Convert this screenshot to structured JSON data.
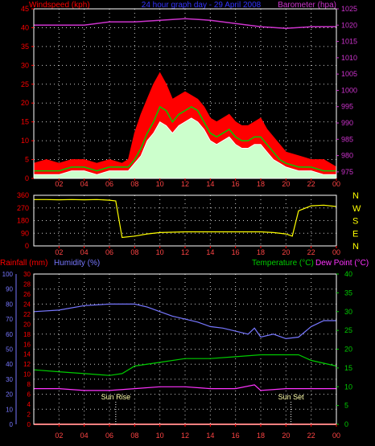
{
  "header": {
    "left_label": "Windspeed (kph)",
    "center_label": "24 hour graph day - 29 April 2008",
    "right_label": "Barometer (hpa)"
  },
  "colors": {
    "background": "#000000",
    "wind_gust": "#ff0000",
    "wind_avg": "#ffffff",
    "wind_mean": "#00cc00",
    "barometer": "#cc33cc",
    "direction": "#ffff00",
    "humidity": "#7777ff",
    "temperature": "#00cc00",
    "dewpoint": "#ff33ff",
    "rainfall": "#ff0000",
    "grid": "#ffffff",
    "axis_left": "#ff0000",
    "axis_right": "#cc33cc",
    "compass": "#ffff00"
  },
  "x_axis": {
    "labels": [
      "02",
      "04",
      "06",
      "08",
      "10",
      "12",
      "14",
      "16",
      "18",
      "20",
      "22",
      "00"
    ],
    "label_hours": [
      2,
      4,
      6,
      8,
      10,
      12,
      14,
      16,
      18,
      20,
      22,
      24
    ]
  },
  "compass": {
    "labels": [
      "N",
      "W",
      "S",
      "E",
      "N"
    ]
  },
  "lower_header": {
    "rainfall": "Rainfall (mm)",
    "humidity": "Humidity (%)",
    "temperature": "Temperature (°C)",
    "dewpoint": "Dew Point (°C)"
  },
  "markers": {
    "sunrise_label": "Sun Rise",
    "sunrise_hour": 6.5,
    "sunset_label": "Sun Set",
    "sunset_hour": 20.4
  },
  "chart_data": [
    {
      "type": "line",
      "id": "wind",
      "xlabel": "",
      "ylabel": "Windspeed (kph)",
      "y2label": "Barometer (hpa)",
      "ylim": [
        0,
        45
      ],
      "y_ticks": [
        0,
        5,
        10,
        15,
        20,
        25,
        30,
        35,
        40,
        45
      ],
      "y2lim": [
        973,
        1025
      ],
      "y2_ticks": [
        975,
        980,
        985,
        990,
        995,
        1000,
        1005,
        1010,
        1015,
        1020,
        1025
      ],
      "series": [
        {
          "name": "gust",
          "axis": "left",
          "points": [
            [
              0,
              4
            ],
            [
              1,
              5
            ],
            [
              2,
              4
            ],
            [
              3,
              5
            ],
            [
              4,
              5
            ],
            [
              5,
              4
            ],
            [
              6,
              5
            ],
            [
              7,
              4
            ],
            [
              7.5,
              5
            ],
            [
              8,
              12
            ],
            [
              8.5,
              17
            ],
            [
              9,
              21
            ],
            [
              9.5,
              25
            ],
            [
              10,
              28
            ],
            [
              10.5,
              25
            ],
            [
              11,
              21
            ],
            [
              11.5,
              22
            ],
            [
              12,
              23
            ],
            [
              12.5,
              22
            ],
            [
              13,
              21
            ],
            [
              13.5,
              19
            ],
            [
              14,
              16
            ],
            [
              14.5,
              15
            ],
            [
              15,
              16
            ],
            [
              15.5,
              17
            ],
            [
              16,
              15
            ],
            [
              16.5,
              14
            ],
            [
              17,
              14
            ],
            [
              17.5,
              15
            ],
            [
              18,
              16
            ],
            [
              18.5,
              13
            ],
            [
              19,
              11
            ],
            [
              19.5,
              9
            ],
            [
              20,
              7
            ],
            [
              21,
              6
            ],
            [
              22,
              5
            ],
            [
              23,
              5
            ],
            [
              24,
              3
            ]
          ]
        },
        {
          "name": "mean",
          "axis": "left",
          "points": [
            [
              0,
              2
            ],
            [
              1,
              2
            ],
            [
              2,
              2
            ],
            [
              3,
              3
            ],
            [
              4,
              3
            ],
            [
              5,
              2
            ],
            [
              6,
              3
            ],
            [
              7,
              3
            ],
            [
              7.5,
              3
            ],
            [
              8,
              5
            ],
            [
              8.5,
              8
            ],
            [
              9,
              12
            ],
            [
              9.5,
              15
            ],
            [
              10,
              19
            ],
            [
              10.5,
              18
            ],
            [
              11,
              15
            ],
            [
              11.5,
              17
            ],
            [
              12,
              18
            ],
            [
              12.5,
              19
            ],
            [
              13,
              18
            ],
            [
              13.5,
              15
            ],
            [
              14,
              12
            ],
            [
              14.5,
              11
            ],
            [
              15,
              12
            ],
            [
              15.5,
              13
            ],
            [
              16,
              11
            ],
            [
              16.5,
              10
            ],
            [
              17,
              10
            ],
            [
              17.5,
              11
            ],
            [
              18,
              11
            ],
            [
              18.5,
              9
            ],
            [
              19,
              7
            ],
            [
              19.5,
              5
            ],
            [
              20,
              4
            ],
            [
              21,
              3
            ],
            [
              22,
              3
            ],
            [
              23,
              2
            ],
            [
              24,
              2
            ]
          ]
        },
        {
          "name": "average",
          "axis": "left",
          "points": [
            [
              0,
              1
            ],
            [
              1,
              1
            ],
            [
              2,
              1
            ],
            [
              3,
              2
            ],
            [
              4,
              2
            ],
            [
              5,
              1
            ],
            [
              6,
              2
            ],
            [
              7,
              2
            ],
            [
              7.5,
              2
            ],
            [
              8,
              4
            ],
            [
              8.5,
              6
            ],
            [
              9,
              10
            ],
            [
              9.5,
              12
            ],
            [
              10,
              15
            ],
            [
              10.5,
              14
            ],
            [
              11,
              12
            ],
            [
              11.5,
              14
            ],
            [
              12,
              15
            ],
            [
              12.5,
              16
            ],
            [
              13,
              15
            ],
            [
              13.5,
              13
            ],
            [
              14,
              10
            ],
            [
              14.5,
              9
            ],
            [
              15,
              10
            ],
            [
              15.5,
              11
            ],
            [
              16,
              9
            ],
            [
              16.5,
              8
            ],
            [
              17,
              8
            ],
            [
              17.5,
              9
            ],
            [
              18,
              9
            ],
            [
              18.5,
              7
            ],
            [
              19,
              5
            ],
            [
              19.5,
              4
            ],
            [
              20,
              3
            ],
            [
              21,
              2
            ],
            [
              22,
              2
            ],
            [
              23,
              1
            ],
            [
              24,
              1
            ]
          ]
        },
        {
          "name": "barometer",
          "axis": "right",
          "points": [
            [
              0,
              1020
            ],
            [
              2,
              1020
            ],
            [
              4,
              1020
            ],
            [
              6,
              1021
            ],
            [
              8,
              1021
            ],
            [
              10,
              1021.5
            ],
            [
              12,
              1022
            ],
            [
              14,
              1021.5
            ],
            [
              16,
              1020.5
            ],
            [
              18,
              1019.5
            ],
            [
              20,
              1019
            ],
            [
              22,
              1019.5
            ],
            [
              24,
              1019.5
            ]
          ]
        }
      ]
    },
    {
      "type": "line",
      "id": "direction",
      "ylabel": "",
      "ylim": [
        0,
        360
      ],
      "y_ticks": [
        0,
        90,
        180,
        270,
        360
      ],
      "series": [
        {
          "name": "direction",
          "points": [
            [
              0,
              330
            ],
            [
              1,
              330
            ],
            [
              2,
              328
            ],
            [
              3,
              330
            ],
            [
              4,
              328
            ],
            [
              5,
              330
            ],
            [
              6,
              325
            ],
            [
              6.5,
              320
            ],
            [
              7,
              60
            ],
            [
              8,
              70
            ],
            [
              9,
              85
            ],
            [
              10,
              95
            ],
            [
              12,
              100
            ],
            [
              14,
              100
            ],
            [
              16,
              100
            ],
            [
              18,
              100
            ],
            [
              19,
              95
            ],
            [
              20,
              85
            ],
            [
              20.5,
              70
            ],
            [
              21,
              250
            ],
            [
              22,
              285
            ],
            [
              23,
              290
            ],
            [
              24,
              280
            ]
          ]
        }
      ]
    },
    {
      "type": "line",
      "id": "climate",
      "ylabel": "Humidity (%)",
      "ylim": [
        0,
        100
      ],
      "y_ticks": [
        0,
        10,
        20,
        30,
        40,
        50,
        60,
        70,
        80,
        90,
        100
      ],
      "rain_ylim": [
        0,
        30
      ],
      "rain_ticks": [
        0,
        2,
        4,
        6,
        8,
        10,
        12,
        14,
        16,
        18,
        20,
        22,
        24,
        26,
        28,
        30
      ],
      "temp_ylim": [
        0,
        40
      ],
      "temp_ticks": [
        0,
        5,
        10,
        15,
        20,
        25,
        30,
        35,
        40
      ],
      "series": [
        {
          "name": "humidity",
          "axis": "humidity",
          "points": [
            [
              0,
              75
            ],
            [
              2,
              76
            ],
            [
              4,
              79
            ],
            [
              6,
              80
            ],
            [
              8,
              80
            ],
            [
              9,
              78
            ],
            [
              10,
              75
            ],
            [
              11,
              72
            ],
            [
              12,
              70
            ],
            [
              13,
              68
            ],
            [
              14,
              65
            ],
            [
              15,
              64
            ],
            [
              16,
              62
            ],
            [
              17,
              60
            ],
            [
              17.5,
              64
            ],
            [
              18,
              58
            ],
            [
              19,
              60
            ],
            [
              20,
              57
            ],
            [
              21,
              58
            ],
            [
              22,
              65
            ],
            [
              23,
              69
            ],
            [
              24,
              69
            ]
          ]
        },
        {
          "name": "temperature",
          "axis": "temperature",
          "points": [
            [
              0,
              14.5
            ],
            [
              2,
              14
            ],
            [
              4,
              13.5
            ],
            [
              6,
              13
            ],
            [
              7,
              13.5
            ],
            [
              8,
              15.5
            ],
            [
              10,
              16.5
            ],
            [
              12,
              17.5
            ],
            [
              14,
              17.5
            ],
            [
              16,
              18
            ],
            [
              18,
              18.5
            ],
            [
              20,
              18.5
            ],
            [
              21,
              18.5
            ],
            [
              22,
              17
            ],
            [
              24,
              15.5
            ]
          ]
        },
        {
          "name": "dewpoint",
          "axis": "temperature",
          "points": [
            [
              0,
              9.5
            ],
            [
              2,
              9.5
            ],
            [
              4,
              9
            ],
            [
              6,
              9
            ],
            [
              8,
              9.5
            ],
            [
              10,
              10
            ],
            [
              12,
              10
            ],
            [
              14,
              9.5
            ],
            [
              16,
              9.5
            ],
            [
              17.5,
              10.5
            ],
            [
              18,
              9
            ],
            [
              20,
              9.5
            ],
            [
              22,
              9.5
            ],
            [
              24,
              9.5
            ]
          ]
        },
        {
          "name": "rainfall",
          "axis": "rain",
          "points": [
            [
              0,
              0
            ],
            [
              24,
              0
            ]
          ]
        }
      ]
    }
  ]
}
